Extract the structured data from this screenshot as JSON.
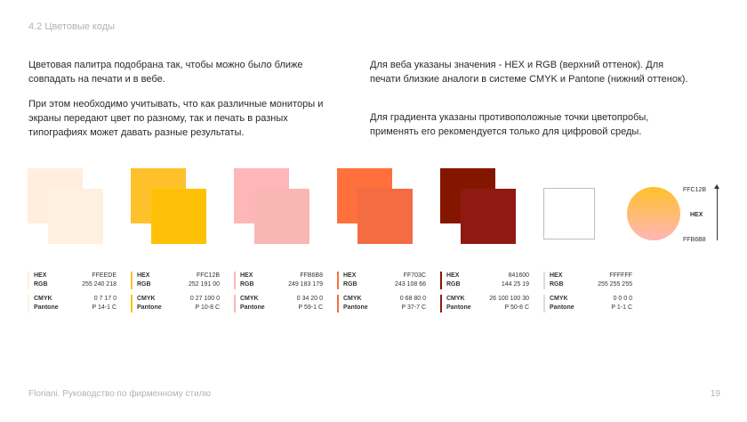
{
  "header": {
    "section_title": "4.2 Цветовые коды"
  },
  "text": {
    "p1": "Цветовая палитра подобрана так, чтобы можно было ближе совпадать на печати и в вебе.",
    "p2": "При этом необходимо учитывать, что как различные мониторы и экраны передают цвет по разному, так и печать в разных типографиях может давать разные результаты.",
    "p3": "Для веба указаны значения - HEX и RGB (верхний оттенок). Для печати близкие аналоги в системе CMYK и Pantone (нижний оттенок).",
    "p4": "Для градиента указаны противоположные точки цветопробы, применять его рекомендуется только для цифровой среды."
  },
  "labels": {
    "hex": "HEX",
    "rgb": "RGB",
    "cmyk": "CMYK",
    "pantone": "Pantone"
  },
  "colors": [
    {
      "hex": "FFEEDE",
      "rgb": "255 240 218",
      "cmyk": "0 7 17 0",
      "pantone": "P 14-1 C",
      "top_color": "#FFEEDE",
      "bottom_color": "#FFF0E0"
    },
    {
      "hex": "FFC12B",
      "rgb": "252 191 00",
      "cmyk": "0 27 100 0",
      "pantone": "P 10-8 C",
      "top_color": "#FFC12B",
      "bottom_color": "#FFC107"
    },
    {
      "hex": "FFB6B8",
      "rgb": "249 183 179",
      "cmyk": "0 34 20 0",
      "pantone": "P 59-1 C",
      "top_color": "#FFB6B8",
      "bottom_color": "#F9B7B3"
    },
    {
      "hex": "FF703C",
      "rgb": "243 108 66",
      "cmyk": "0 68 80 0",
      "pantone": "P 37-7 C",
      "top_color": "#FF703C",
      "bottom_color": "#F36C42"
    },
    {
      "hex": "841600",
      "rgb": "144 25 19",
      "cmyk": "26 100 100 30",
      "pantone": "P 50-8 C",
      "top_color": "#841600",
      "bottom_color": "#901913"
    },
    {
      "hex": "FFFFFF",
      "rgb": "255 255 255",
      "cmyk": "0 0 0 0",
      "pantone": "P 1-1 C",
      "top_color": "#FFFFFF",
      "bottom_color": "#FFFFFF"
    }
  ],
  "gradient": {
    "top_label": "FFC12B",
    "mid_label": "HEX",
    "bottom_label": "FFB6B8",
    "from": "#FFC12B",
    "to": "#FFB6B8"
  },
  "footer": {
    "left": "Floriani. Руководство по фирменному стилю",
    "page": "19"
  }
}
